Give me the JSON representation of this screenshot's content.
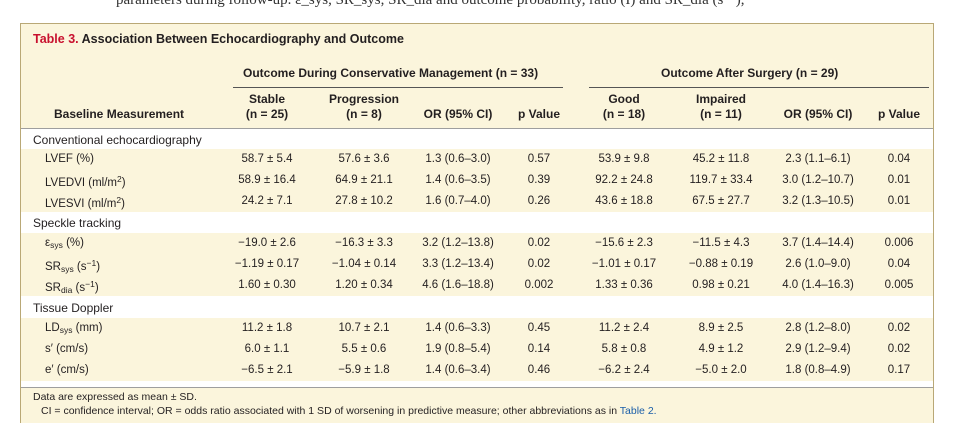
{
  "top_fragment": "parameters during follow-up. ε_sys, SR_sys, SR_dia and outcome probability, ratio (I) and SR_dia (s⁻¹),",
  "table": {
    "number": "Table 3.",
    "title": "Association Between Echocardiography and Outcome",
    "group_conservative": "Outcome During Conservative Management (n = 33)",
    "group_surgery": "Outcome After Surgery (n = 29)",
    "columns": {
      "baseline": "Baseline Measurement",
      "stable_1": "Stable",
      "stable_2": "(n = 25)",
      "progression_1": "Progression",
      "progression_2": "(n = 8)",
      "or_cons": "OR (95% CI)",
      "p_cons": "p Value",
      "good_1": "Good",
      "good_2": "(n = 18)",
      "impaired_1": "Impaired",
      "impaired_2": "(n = 11)",
      "or_surg": "OR (95% CI)",
      "p_surg": "p Value"
    },
    "sections": [
      {
        "name": "Conventional echocardiography",
        "rows": [
          {
            "label": "LVEF (%)",
            "label_main": "",
            "label_sub": "",
            "label_unit": "",
            "label_sup": "",
            "label_end": "",
            "stable": "58.7 ± 5.4",
            "progression": "57.6 ± 3.6",
            "or_cons": "1.3 (0.6–3.0)",
            "p_cons": "0.57",
            "good": "53.9 ± 9.8",
            "impaired": "45.2 ± 11.8",
            "or_surg": "2.3 (1.1–6.1)",
            "p_surg": "0.04"
          },
          {
            "label": "",
            "label_main": "LVEDVI (ml/m",
            "label_sub": "",
            "label_unit": "",
            "label_sup": "2",
            "label_end": ")",
            "stable": "58.9 ± 16.4",
            "progression": "64.9 ± 21.1",
            "or_cons": "1.4 (0.6–3.5)",
            "p_cons": "0.39",
            "good": "92.2 ± 24.8",
            "impaired": "119.7 ± 33.4",
            "or_surg": "3.0 (1.2–10.7)",
            "p_surg": "0.01"
          },
          {
            "label": "",
            "label_main": "LVESVI (ml/m",
            "label_sub": "",
            "label_unit": "",
            "label_sup": "2",
            "label_end": ")",
            "stable": "24.2 ± 7.1",
            "progression": "27.8 ± 10.2",
            "or_cons": "1.6 (0.7–4.0)",
            "p_cons": "0.26",
            "good": "43.6 ± 18.8",
            "impaired": "67.5 ± 27.7",
            "or_surg": "3.2 (1.3–10.5)",
            "p_surg": "0.01"
          }
        ]
      },
      {
        "name": "Speckle tracking",
        "rows": [
          {
            "label": "",
            "label_main": "ε",
            "label_sub": "sys",
            "label_unit": " (%)",
            "label_sup": "",
            "label_end": "",
            "stable": "−19.0 ± 2.6",
            "progression": "−16.3 ± 3.3",
            "or_cons": "3.2 (1.2–13.8)",
            "p_cons": "0.02",
            "good": "−15.6 ± 2.3",
            "impaired": "−11.5 ± 4.3",
            "or_surg": "3.7 (1.4–14.4)",
            "p_surg": "0.006"
          },
          {
            "label": "",
            "label_main": "SR",
            "label_sub": "sys",
            "label_unit": " (s",
            "label_sup": "−1",
            "label_end": ")",
            "stable": "−1.19 ± 0.17",
            "progression": "−1.04 ± 0.14",
            "or_cons": "3.3 (1.2–13.4)",
            "p_cons": "0.02",
            "good": "−1.01 ± 0.17",
            "impaired": "−0.88 ± 0.19",
            "or_surg": "2.6 (1.0–9.0)",
            "p_surg": "0.04"
          },
          {
            "label": "",
            "label_main": "SR",
            "label_sub": "dia",
            "label_unit": " (s",
            "label_sup": "−1",
            "label_end": ")",
            "stable": "1.60 ± 0.30",
            "progression": "1.20 ± 0.34",
            "or_cons": "4.6 (1.6–18.8)",
            "p_cons": "0.002",
            "good": "1.33 ± 0.36",
            "impaired": "0.98 ± 0.21",
            "or_surg": "4.0 (1.4–16.3)",
            "p_surg": "0.005"
          }
        ]
      },
      {
        "name": "Tissue Doppler",
        "rows": [
          {
            "label": "",
            "label_main": "LD",
            "label_sub": "sys",
            "label_unit": " (mm)",
            "label_sup": "",
            "label_end": "",
            "stable": "11.2 ± 1.8",
            "progression": "10.7 ± 2.1",
            "or_cons": "1.4 (0.6–3.3)",
            "p_cons": "0.45",
            "good": "11.2 ± 2.4",
            "impaired": "8.9 ± 2.5",
            "or_surg": "2.8 (1.2–8.0)",
            "p_surg": "0.02"
          },
          {
            "label": "s′ (cm/s)",
            "label_main": "",
            "label_sub": "",
            "label_unit": "",
            "label_sup": "",
            "label_end": "",
            "stable": "6.0 ± 1.1",
            "progression": "5.5 ± 0.6",
            "or_cons": "1.9 (0.8–5.4)",
            "p_cons": "0.14",
            "good": "5.8 ± 0.8",
            "impaired": "4.9 ± 1.2",
            "or_surg": "2.9 (1.2–9.4)",
            "p_surg": "0.02"
          },
          {
            "label": "e′ (cm/s)",
            "label_main": "",
            "label_sub": "",
            "label_unit": "",
            "label_sup": "",
            "label_end": "",
            "stable": "−6.5 ± 2.1",
            "progression": "−5.9 ± 1.8",
            "or_cons": "1.4 (0.6–3.4)",
            "p_cons": "0.46",
            "good": "−6.2 ± 2.4",
            "impaired": "−5.0 ± 2.0",
            "or_surg": "1.8 (0.8–4.9)",
            "p_surg": "0.17"
          }
        ]
      }
    ],
    "footnote_1": "Data are expressed as mean ± SD.",
    "footnote_2": "CI = confidence interval; OR = odds ratio associated with 1 SD of worsening in predictive measure; other abbreviations as in",
    "footnote_2_link": "Table 2.",
    "colors": {
      "accent": "#c8102e",
      "band": "#fbf5dc",
      "border": "#b9a876",
      "link": "#1a5ea8"
    }
  }
}
